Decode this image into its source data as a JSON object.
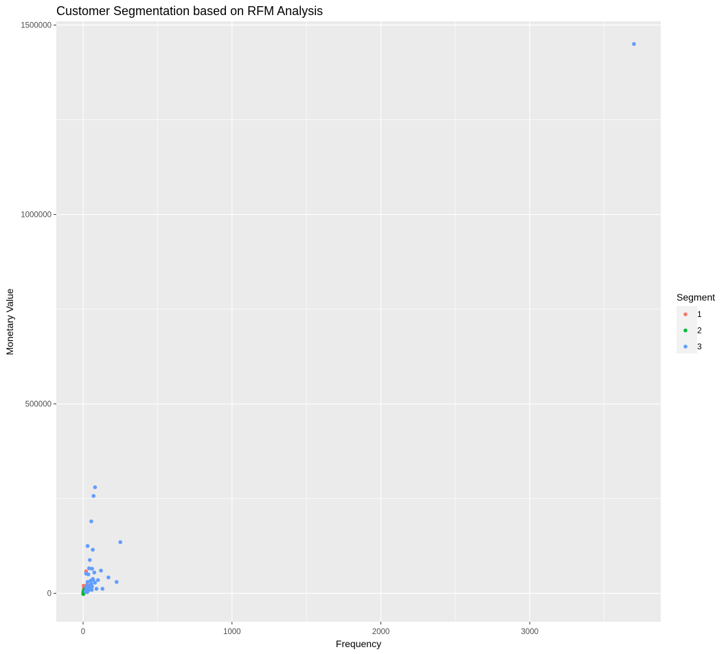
{
  "chart_data": {
    "type": "scatter",
    "title": "Customer Segmentation based on RFM Analysis",
    "xlabel": "Frequency",
    "ylabel": "Monetary Value",
    "xlim": [
      -180,
      3880
    ],
    "ylim": [
      -75000,
      1510000
    ],
    "x_ticks": [
      0,
      1000,
      2000,
      3000
    ],
    "x_tick_labels": [
      "0",
      "1000",
      "2000",
      "3000"
    ],
    "y_ticks": [
      0,
      500000,
      1000000,
      1500000
    ],
    "y_tick_labels": [
      "0",
      "500000",
      "1000000",
      "1500000"
    ],
    "grid": true,
    "legend": {
      "title": "Segment",
      "placement": "right",
      "entries": [
        {
          "label": "1",
          "color": "#F8766D"
        },
        {
          "label": "2",
          "color": "#00BA38"
        },
        {
          "label": "3",
          "color": "#619CFF"
        }
      ]
    },
    "series": [
      {
        "name": "1",
        "color": "#F8766D",
        "points": [
          [
            3,
            20000
          ],
          [
            5,
            12000
          ],
          [
            8,
            8000
          ],
          [
            2,
            4000
          ],
          [
            6,
            2000
          ],
          [
            10,
            15000
          ],
          [
            4,
            6000
          ],
          [
            12,
            10000
          ],
          [
            7,
            3000
          ],
          [
            15,
            17000
          ],
          [
            20,
            58000
          ],
          [
            25,
            22000
          ],
          [
            9,
            9000
          ],
          [
            3,
            1000
          ],
          [
            14,
            5000
          ]
        ]
      },
      {
        "name": "2",
        "color": "#00BA38",
        "points": [
          [
            1,
            -2000
          ],
          [
            2,
            1000
          ],
          [
            3,
            3000
          ],
          [
            1,
            500
          ],
          [
            4,
            2500
          ],
          [
            5,
            5000
          ],
          [
            2,
            -1000
          ],
          [
            6,
            4000
          ],
          [
            3,
            6000
          ],
          [
            8,
            8000
          ],
          [
            10,
            12000
          ],
          [
            4,
            1500
          ],
          [
            7,
            9000
          ],
          [
            2,
            2000
          ],
          [
            5,
            7000
          ]
        ]
      },
      {
        "name": "3",
        "color": "#619CFF",
        "points": [
          [
            3700,
            1450000
          ],
          [
            80,
            280000
          ],
          [
            70,
            257000
          ],
          [
            55,
            190000
          ],
          [
            250,
            135000
          ],
          [
            30,
            125000
          ],
          [
            65,
            115000
          ],
          [
            45,
            88000
          ],
          [
            120,
            60000
          ],
          [
            60,
            65000
          ],
          [
            40,
            66000
          ],
          [
            20,
            52000
          ],
          [
            35,
            50000
          ],
          [
            75,
            55000
          ],
          [
            170,
            42000
          ],
          [
            225,
            30000
          ],
          [
            80,
            28000
          ],
          [
            50,
            33000
          ],
          [
            25,
            20000
          ],
          [
            40,
            13000
          ],
          [
            90,
            12000
          ],
          [
            130,
            12000
          ],
          [
            60,
            18000
          ],
          [
            30,
            30000
          ],
          [
            55,
            25000
          ],
          [
            45,
            10000
          ],
          [
            35,
            8000
          ],
          [
            20,
            14000
          ],
          [
            15,
            5000
          ],
          [
            65,
            38000
          ],
          [
            100,
            35000
          ],
          [
            28,
            3000
          ],
          [
            48,
            22000
          ],
          [
            38,
            18000
          ],
          [
            58,
            9000
          ],
          [
            68,
            35000
          ]
        ]
      }
    ]
  }
}
